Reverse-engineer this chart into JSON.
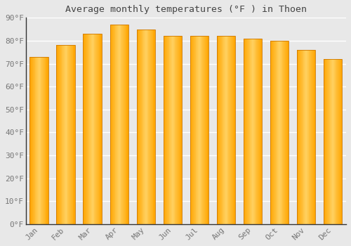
{
  "title": "Average monthly temperatures (°F ) in Thoen",
  "months": [
    "Jan",
    "Feb",
    "Mar",
    "Apr",
    "May",
    "Jun",
    "Jul",
    "Aug",
    "Sep",
    "Oct",
    "Nov",
    "Dec"
  ],
  "values": [
    73,
    78,
    83,
    87,
    85,
    82,
    82,
    82,
    81,
    80,
    76,
    72
  ],
  "ylim": [
    0,
    90
  ],
  "yticks": [
    0,
    10,
    20,
    30,
    40,
    50,
    60,
    70,
    80,
    90
  ],
  "ytick_labels": [
    "0°F",
    "10°F",
    "20°F",
    "30°F",
    "40°F",
    "50°F",
    "60°F",
    "70°F",
    "80°F",
    "90°F"
  ],
  "background_color": "#e8e8e8",
  "grid_color": "#ffffff",
  "bar_color_main": "#FFA500",
  "bar_color_light": "#FFD060",
  "bar_edge_color": "#cc7700",
  "title_fontsize": 9.5,
  "tick_fontsize": 8,
  "bar_width": 0.7,
  "n_gradient_strips": 30
}
